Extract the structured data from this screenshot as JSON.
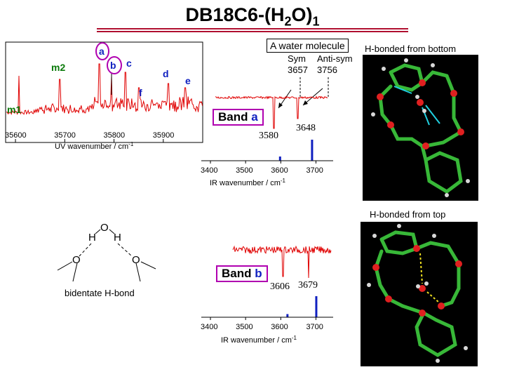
{
  "title": {
    "main": "DB18C6-(H",
    "sub2": "2",
    "mid": "O)",
    "sub1": "1"
  },
  "uv": {
    "xlabel": "UV wavenumber / cm",
    "xlabel_sup": "-1",
    "ticks": [
      "35600",
      "35700",
      "35800",
      "35900"
    ],
    "peak_labels": [
      {
        "text": "m1",
        "color": "#0a7a0a"
      },
      {
        "text": "m2",
        "color": "#0a7a0a"
      },
      {
        "text": "a",
        "color": "#1020c0"
      },
      {
        "text": "b",
        "color": "#1020c0"
      },
      {
        "text": "c",
        "color": "#1020c0"
      },
      {
        "text": "d",
        "color": "#1020c0"
      },
      {
        "text": "e",
        "color": "#1020c0"
      },
      {
        "text": "f",
        "color": "#1020c0"
      }
    ]
  },
  "ir_a": {
    "band_prefix": "Band ",
    "band_letter": "a",
    "peak1": "3580",
    "peak2": "3648",
    "ticks": [
      "3400",
      "3500",
      "3600",
      "3700"
    ],
    "xlabel": "IR wavenumber / cm",
    "xlabel_sup": "-1"
  },
  "ir_b": {
    "band_prefix": "Band ",
    "band_letter": "b",
    "peak1": "3606",
    "peak2": "3679",
    "ticks": [
      "3400",
      "3500",
      "3600",
      "3700"
    ],
    "xlabel": "IR wavenumber / cm",
    "xlabel_sup": "-1"
  },
  "water": {
    "callout": "A water molecule",
    "sym_label": "Sym",
    "sym_value": "3657",
    "anti_label": "Anti-sym",
    "anti_value": "3756"
  },
  "structure": {
    "bottom_label": "H-bonded from bottom",
    "top_label": "H-bonded from top"
  },
  "scheme": {
    "atom_O": "O",
    "atom_H": "H",
    "caption": "bidentate H-bond"
  },
  "chart_data": [
    {
      "type": "line",
      "xlabel": "UV wavenumber / cm-1",
      "xlim": [
        35580,
        35980
      ],
      "peaks": [
        {
          "label": "m1",
          "x": 35607
        },
        {
          "label": "m2",
          "x": 35690
        },
        {
          "label": "a",
          "x": 35770
        },
        {
          "label": "b",
          "x": 35795
        },
        {
          "label": "c",
          "x": 35823
        },
        {
          "label": "f",
          "x": 35850
        },
        {
          "label": "d",
          "x": 35910
        },
        {
          "label": "e",
          "x": 35945
        }
      ]
    },
    {
      "type": "line",
      "title": "Band a",
      "xlabel": "IR wavenumber / cm-1",
      "xlim": [
        3380,
        3745
      ],
      "peaks": [
        3580,
        3648
      ],
      "calculated_sticks": [
        {
          "x": 3598,
          "h": 0.2
        },
        {
          "x": 3689,
          "h": 1.0
        }
      ]
    },
    {
      "type": "line",
      "title": "Band b",
      "xlabel": "IR wavenumber / cm-1",
      "xlim": [
        3380,
        3745
      ],
      "peaks": [
        3606,
        3679
      ],
      "calculated_sticks": [
        {
          "x": 3619,
          "h": 0.15
        },
        {
          "x": 3701,
          "h": 1.0
        }
      ]
    }
  ]
}
